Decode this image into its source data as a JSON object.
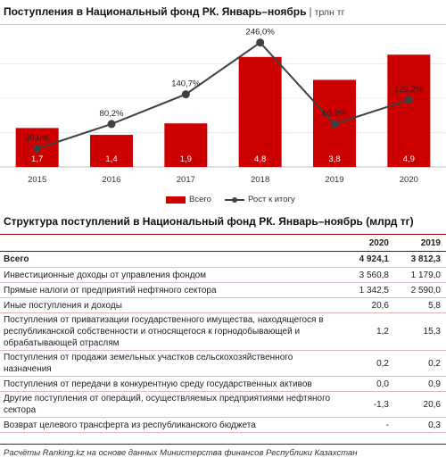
{
  "header": {
    "title": "Поступления в Национальный фонд РК. Январь–ноябрь",
    "separator": "|",
    "unit": "трлн тг"
  },
  "chart_data": {
    "type": "bar",
    "categories": [
      "2015",
      "2016",
      "2017",
      "2018",
      "2019",
      "2020"
    ],
    "series": [
      {
        "name": "Всего",
        "type": "bar",
        "values": [
          1.7,
          1.4,
          1.9,
          4.8,
          3.8,
          4.9
        ],
        "labels": [
          "1,7",
          "1,4",
          "1,9",
          "4,8",
          "3,8",
          "4,9"
        ],
        "color": "#cc0000"
      },
      {
        "name": "Рост к итогу",
        "type": "line",
        "values": [
          30.0,
          80.2,
          140.7,
          246.0,
          80.2,
          129.2
        ],
        "labels": [
          "30,0%",
          "80,2%",
          "140,7%",
          "246,0%",
          "80,2%",
          "129,2%"
        ],
        "color": "#404040"
      }
    ],
    "legend_position": "bottom",
    "grid": true
  },
  "legend": {
    "bars": "Всего",
    "line": "Рост к итогу"
  },
  "table": {
    "title": "Структура поступлений в Национальный фонд РК. Январь–ноябрь (млрд тг)",
    "columns": [
      "2020",
      "2019"
    ],
    "rows": [
      {
        "label": "Всего",
        "v2020": "4 924,1",
        "v2019": "3 812,3",
        "bold": true
      },
      {
        "label": "Инвестиционные доходы от управления фондом",
        "v2020": "3 560,8",
        "v2019": "1 179,0"
      },
      {
        "label": "Прямые налоги от предприятий нефтяного сектора",
        "v2020": "1 342,5",
        "v2019": "2 590,0"
      },
      {
        "label": "Иные поступления и доходы",
        "v2020": "20,6",
        "v2019": "5,8"
      },
      {
        "label": "Поступления от приватизации государственного имущества, находящегося в республиканской собственности и относящегося к горнодобывающей и обрабатывающей отраслям",
        "v2020": "1,2",
        "v2019": "15,3"
      },
      {
        "label": "Поступления от продажи земельных участков сельскохозяйственного назначения",
        "v2020": "0,2",
        "v2019": "0,2"
      },
      {
        "label": "Поступления от передачи в конкурентную среду государственных активов",
        "v2020": "0,0",
        "v2019": "0,9"
      },
      {
        "label": "Другие поступления от операций, осуществляемых предприятиями нефтяного сектора",
        "v2020": "-1,3",
        "v2019": "20,6"
      },
      {
        "label": "Возврат целевого трансферта из республиканского бюджета",
        "v2020": "-",
        "v2019": "0,3"
      }
    ]
  },
  "footnote": "Расчёты Ranking.kz на основе данных Министерства финансов Республики Казахстан"
}
